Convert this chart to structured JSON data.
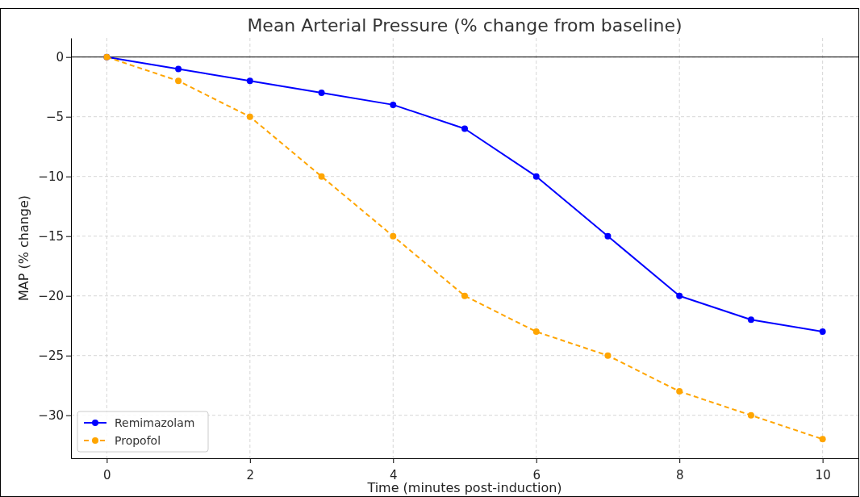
{
  "chart_data": {
    "type": "line",
    "title": "Mean Arterial Pressure (% change from baseline)",
    "xlabel": "Time (minutes post-induction)",
    "ylabel": "MAP (% change)",
    "x": [
      0,
      1,
      2,
      3,
      4,
      5,
      6,
      7,
      8,
      9,
      10
    ],
    "series": [
      {
        "name": "Remimazolam",
        "color": "#0000ff",
        "line_style": "solid",
        "values": [
          0,
          -1,
          -2,
          -3,
          -4,
          -6,
          -10,
          -15,
          -20,
          -22,
          -23
        ]
      },
      {
        "name": "Propofol",
        "color": "#ffa500",
        "line_style": "dashed",
        "values": [
          0,
          -2,
          -5,
          -10,
          -15,
          -20,
          -23,
          -25,
          -28,
          -30,
          -32
        ]
      }
    ],
    "xlim": [
      -0.5,
      10.5
    ],
    "xticks": [
      0,
      2,
      4,
      6,
      8,
      10
    ],
    "ylim": [
      -33.6,
      1.6
    ],
    "yticks": [
      {
        "value": 0,
        "label": "0"
      },
      {
        "value": -5,
        "label": "−5"
      },
      {
        "value": -10,
        "label": "−10"
      },
      {
        "value": -15,
        "label": "−15"
      },
      {
        "value": -20,
        "label": "−20"
      },
      {
        "value": -25,
        "label": "−25"
      },
      {
        "value": -30,
        "label": "−30"
      }
    ],
    "ref_lines": [
      {
        "axis": "y",
        "value": 0,
        "color": "#000000",
        "line_style": "solid"
      }
    ],
    "grid": true,
    "legend": "bottom left",
    "marker": "circle"
  }
}
